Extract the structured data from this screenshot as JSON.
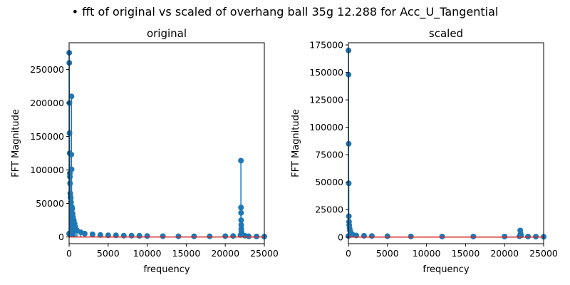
{
  "suptitle": "• fft of original vs scaled of overhang ball 35g 12.288 for Acc_U_Tangential",
  "colors": {
    "stem": "#1f77b4",
    "baseline": "#d62728",
    "axis": "#000000",
    "background": "#ffffff"
  },
  "chart_data": [
    {
      "type": "stem",
      "title": "original",
      "xlabel": "frequency",
      "ylabel": "FFT Magnitude",
      "xlim": [
        0,
        25000
      ],
      "ylim": [
        -10000,
        290000
      ],
      "xticks": [
        0,
        5000,
        10000,
        15000,
        20000,
        25000
      ],
      "yticks": [
        0,
        50000,
        100000,
        150000,
        200000,
        250000
      ],
      "grid": false,
      "points": [
        [
          0,
          5000
        ],
        [
          12,
          275000
        ],
        [
          25,
          260000
        ],
        [
          40,
          200000
        ],
        [
          55,
          155000
        ],
        [
          70,
          125000
        ],
        [
          85,
          95000
        ],
        [
          100,
          90000
        ],
        [
          120,
          80000
        ],
        [
          150,
          65000
        ],
        [
          180,
          60000
        ],
        [
          210,
          58000
        ],
        [
          250,
          52000
        ],
        [
          280,
          123000
        ],
        [
          300,
          210000
        ],
        [
          320,
          101000
        ],
        [
          350,
          45000
        ],
        [
          400,
          42000
        ],
        [
          450,
          35000
        ],
        [
          500,
          30000
        ],
        [
          600,
          25000
        ],
        [
          700,
          20000
        ],
        [
          800,
          15000
        ],
        [
          1000,
          10000
        ],
        [
          1500,
          7000
        ],
        [
          2000,
          5000
        ],
        [
          3000,
          4000
        ],
        [
          4000,
          3000
        ],
        [
          5000,
          2500
        ],
        [
          6000,
          2500
        ],
        [
          7000,
          2000
        ],
        [
          8000,
          2000
        ],
        [
          9000,
          1800
        ],
        [
          10000,
          1500
        ],
        [
          12000,
          1200
        ],
        [
          14000,
          1000
        ],
        [
          16000,
          1000
        ],
        [
          18000,
          1000
        ],
        [
          20000,
          1200
        ],
        [
          21000,
          1500
        ],
        [
          21950,
          3000
        ],
        [
          22000,
          114000
        ],
        [
          22010,
          44000
        ],
        [
          22020,
          36000
        ],
        [
          22030,
          25000
        ],
        [
          22040,
          18000
        ],
        [
          22050,
          12000
        ],
        [
          22060,
          8000
        ],
        [
          22100,
          5000
        ],
        [
          22500,
          2000
        ],
        [
          23000,
          1000
        ],
        [
          24000,
          800
        ],
        [
          25000,
          600
        ]
      ]
    },
    {
      "type": "stem",
      "title": "scaled",
      "xlabel": "frequency",
      "ylabel": "FFT Magnitude",
      "xlim": [
        0,
        25000
      ],
      "ylim": [
        -6000,
        177000
      ],
      "xticks": [
        0,
        5000,
        10000,
        15000,
        20000,
        25000
      ],
      "yticks": [
        0,
        25000,
        50000,
        75000,
        100000,
        125000,
        150000,
        175000
      ],
      "grid": false,
      "points": [
        [
          0,
          1000
        ],
        [
          10,
          170000
        ],
        [
          20,
          148000
        ],
        [
          30,
          85000
        ],
        [
          45,
          49000
        ],
        [
          60,
          19000
        ],
        [
          80,
          14000
        ],
        [
          100,
          11000
        ],
        [
          150,
          8000
        ],
        [
          200,
          6000
        ],
        [
          300,
          4000
        ],
        [
          500,
          2500
        ],
        [
          1000,
          1500
        ],
        [
          2000,
          1200
        ],
        [
          3000,
          1000
        ],
        [
          5000,
          800
        ],
        [
          8000,
          600
        ],
        [
          12000,
          500
        ],
        [
          16000,
          500
        ],
        [
          20000,
          500
        ],
        [
          21900,
          800
        ],
        [
          22000,
          6000
        ],
        [
          22050,
          3000
        ],
        [
          22100,
          1500
        ],
        [
          23000,
          500
        ],
        [
          24000,
          400
        ],
        [
          25000,
          300
        ]
      ]
    }
  ]
}
